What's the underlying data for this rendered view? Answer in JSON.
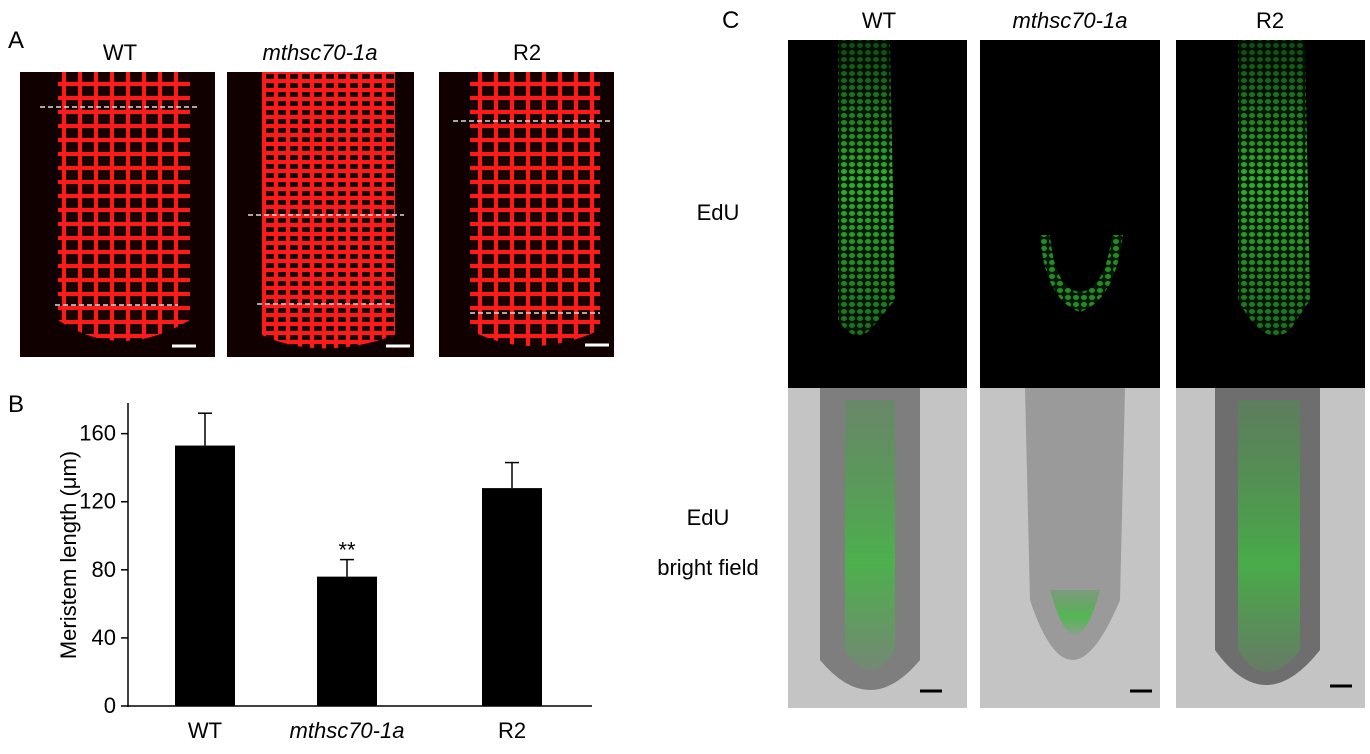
{
  "panel_a": {
    "label": "A",
    "columns": [
      "WT",
      "mthsc70-1a",
      "R2"
    ]
  },
  "chart_data": {
    "type": "bar",
    "panel_label": "B",
    "y_label": "Meristem length (μm)",
    "categories": [
      "WT",
      "mthsc70-1a",
      "R2"
    ],
    "values": [
      153,
      76,
      128
    ],
    "errors": [
      19,
      10,
      15
    ],
    "color": "#000000",
    "ylim": [
      0,
      178
    ],
    "yticks": [
      0,
      40,
      80,
      120,
      160
    ],
    "annotations": [
      "**"
    ]
  },
  "panel_c": {
    "label": "C",
    "columns": [
      "WT",
      "mthsc70-1a",
      "R2"
    ],
    "rows": [
      {
        "lines": [
          "EdU"
        ]
      },
      {
        "lines": [
          "EdU",
          "bright field"
        ]
      }
    ]
  }
}
